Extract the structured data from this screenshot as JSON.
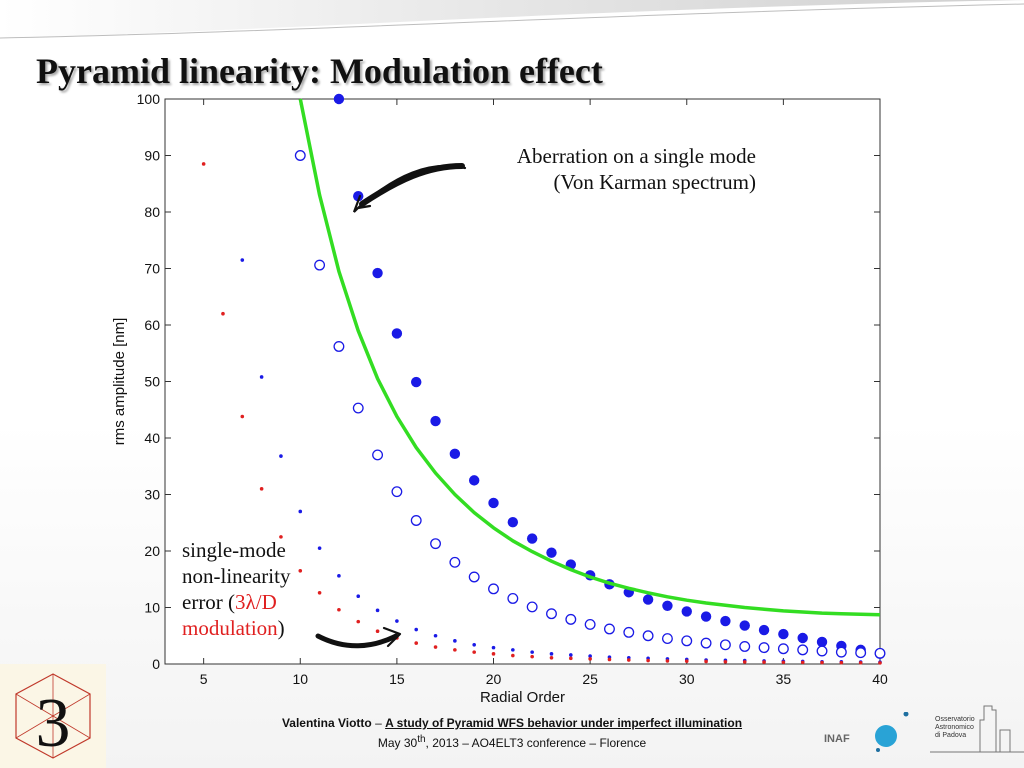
{
  "slide": {
    "title": "Pyramid linearity: Modulation effect"
  },
  "annotations": {
    "top_line1": "Aberration on a single mode",
    "top_line2": "(Von Karman spectrum)",
    "bottom_line1": "single-mode",
    "bottom_line2": "non-linearity",
    "bottom_line3_prefix": "error (",
    "bottom_line3_red": "3λ/D",
    "bottom_line4_red": "modulation",
    "bottom_line4_suffix": ")"
  },
  "footer": {
    "author": "Valentina Viotto",
    "dash": " – ",
    "talk_title": "A study of Pyramid WFS behavior under imperfect illumination",
    "date_prefix": "May 30",
    "date_sup": "th",
    "date_suffix": ", 2013 – AO4ELT3 conference – Florence"
  },
  "logos": {
    "inaf": "INAF",
    "padova_line1": "Osservatorio",
    "padova_line2": "Astronomico",
    "padova_line3": "di Padova"
  },
  "colors": {
    "blue": "#1a1ae6",
    "red": "#e02020",
    "green": "#33dd22",
    "axis": "#333333"
  },
  "chart_data": {
    "type": "scatter",
    "title": "",
    "xlabel": "Radial Order",
    "ylabel": "rms amplitude [nm]",
    "xlim": [
      3,
      40
    ],
    "ylim": [
      0,
      100
    ],
    "xticks": [
      5,
      10,
      15,
      20,
      25,
      30,
      35,
      40
    ],
    "yticks": [
      0,
      10,
      20,
      30,
      40,
      50,
      60,
      70,
      80,
      90,
      100
    ],
    "grid": false,
    "series": [
      {
        "style": "filled-large",
        "color": "#1a1ae6",
        "x": [
          12,
          13,
          14,
          15,
          16,
          17,
          18,
          19,
          20,
          21,
          22,
          23,
          24,
          25,
          26,
          27,
          28,
          29,
          30,
          31,
          32,
          33,
          34,
          35,
          36,
          37,
          38,
          39,
          40
        ],
        "y": [
          100,
          82.8,
          69.2,
          58.5,
          49.9,
          43,
          37.2,
          32.5,
          28.5,
          25.1,
          22.2,
          19.7,
          17.6,
          15.7,
          14.1,
          12.7,
          11.4,
          10.3,
          9.3,
          8.4,
          7.6,
          6.8,
          6,
          5.3,
          4.6,
          3.9,
          3.2,
          2.5,
          1.8
        ]
      },
      {
        "style": "open-circle",
        "color": "#1a1ae6",
        "x": [
          10,
          11,
          12,
          13,
          14,
          15,
          16,
          17,
          18,
          19,
          20,
          21,
          22,
          23,
          24,
          25,
          26,
          27,
          28,
          29,
          30,
          31,
          32,
          33,
          34,
          35,
          36,
          37,
          38,
          39,
          40
        ],
        "y": [
          90,
          70.6,
          56.2,
          45.3,
          37,
          30.5,
          25.4,
          21.3,
          18,
          15.4,
          13.3,
          11.6,
          10.1,
          8.9,
          7.9,
          7,
          6.2,
          5.6,
          5,
          4.5,
          4.1,
          3.7,
          3.4,
          3.1,
          2.9,
          2.7,
          2.5,
          2.3,
          2.1,
          2,
          1.9
        ]
      },
      {
        "style": "small-dot",
        "color": "#1a1ae6",
        "x": [
          7,
          8,
          9,
          10,
          11,
          12,
          13,
          14,
          15,
          16,
          17,
          18,
          19,
          20,
          21,
          22,
          23,
          24,
          25,
          26,
          27,
          28,
          29,
          30,
          31,
          32,
          33,
          34,
          35,
          36,
          37,
          38,
          39,
          40
        ],
        "y": [
          71.5,
          50.8,
          36.8,
          27,
          20.5,
          15.6,
          12,
          9.5,
          7.6,
          6.1,
          5,
          4.1,
          3.4,
          2.9,
          2.5,
          2.1,
          1.8,
          1.6,
          1.4,
          1.2,
          1.1,
          1,
          0.9,
          0.8,
          0.7,
          0.65,
          0.6,
          0.55,
          0.5,
          0.45,
          0.4,
          0.38,
          0.35,
          0.32
        ]
      },
      {
        "style": "small-dot",
        "color": "#e02020",
        "x": [
          5,
          6,
          7,
          8,
          9,
          10,
          11,
          12,
          13,
          14,
          15,
          16,
          17,
          18,
          19,
          20,
          21,
          22,
          23,
          24,
          25,
          26,
          27,
          28,
          29,
          30,
          31,
          32,
          33,
          34,
          35,
          36,
          37,
          38,
          39,
          40
        ],
        "y": [
          88.5,
          62,
          43.8,
          31,
          22.5,
          16.5,
          12.6,
          9.6,
          7.5,
          5.8,
          4.6,
          3.7,
          3,
          2.5,
          2.1,
          1.8,
          1.5,
          1.3,
          1.1,
          1,
          0.9,
          0.8,
          0.7,
          0.62,
          0.55,
          0.5,
          0.45,
          0.4,
          0.37,
          0.34,
          0.31,
          0.28,
          0.26,
          0.24,
          0.22,
          0.2
        ]
      },
      {
        "style": "line",
        "color": "#33dd22",
        "x": [
          10,
          11,
          12,
          13,
          14,
          15,
          16,
          17,
          18,
          19,
          20,
          21,
          22,
          23,
          24,
          25,
          26,
          27,
          28,
          29,
          30,
          31,
          32,
          33,
          34,
          35,
          36,
          37,
          38,
          39,
          40
        ],
        "y": [
          100,
          83,
          69.5,
          59,
          50.5,
          43.8,
          38.3,
          33.8,
          30,
          26.8,
          24.1,
          21.8,
          19.9,
          18.2,
          16.7,
          15.4,
          14.3,
          13.4,
          12.6,
          11.9,
          11.3,
          10.8,
          10.4,
          10,
          9.7,
          9.4,
          9.2,
          9,
          8.9,
          8.8,
          8.7
        ]
      }
    ]
  }
}
